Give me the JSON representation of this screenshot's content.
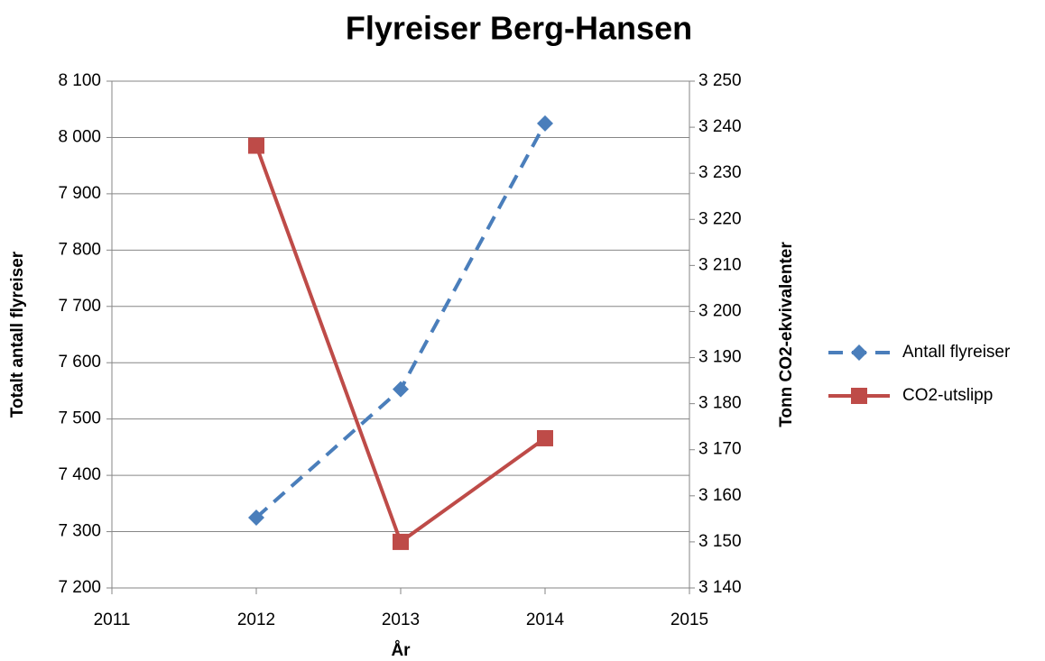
{
  "chart_data": {
    "type": "line",
    "title": "Flyreiser Berg-Hansen",
    "x_label": "År",
    "y_label": "Totalt antall flyreiser",
    "y2_label": "Tonn CO2-ekvivalenter",
    "x": [
      2012,
      2013,
      2014
    ],
    "xlim": [
      2011,
      2015
    ],
    "xticks": [
      2011,
      2012,
      2013,
      2014,
      2015
    ],
    "ylim": [
      7200,
      8100
    ],
    "yticks": [
      {
        "value": 7200,
        "label": "7 200"
      },
      {
        "value": 7300,
        "label": "7 300"
      },
      {
        "value": 7400,
        "label": "7 400"
      },
      {
        "value": 7500,
        "label": "7 500"
      },
      {
        "value": 7600,
        "label": "7 600"
      },
      {
        "value": 7700,
        "label": "7 700"
      },
      {
        "value": 7800,
        "label": "7 800"
      },
      {
        "value": 7900,
        "label": "7 900"
      },
      {
        "value": 8000,
        "label": "8 000"
      },
      {
        "value": 8100,
        "label": "8 100"
      }
    ],
    "y2lim": [
      3140,
      3250
    ],
    "y2ticks": [
      {
        "value": 3140,
        "label": "3 140"
      },
      {
        "value": 3150,
        "label": "3 150"
      },
      {
        "value": 3160,
        "label": "3 160"
      },
      {
        "value": 3170,
        "label": "3 170"
      },
      {
        "value": 3180,
        "label": "3 180"
      },
      {
        "value": 3190,
        "label": "3 190"
      },
      {
        "value": 3200,
        "label": "3 200"
      },
      {
        "value": 3210,
        "label": "3 210"
      },
      {
        "value": 3220,
        "label": "3 220"
      },
      {
        "value": 3230,
        "label": "3 230"
      },
      {
        "value": 3240,
        "label": "3 240"
      },
      {
        "value": 3250,
        "label": "3 250"
      }
    ],
    "grid": true,
    "legend": "right",
    "series": [
      {
        "name": "Antall flyreiser",
        "color": "#4a7ebb",
        "values": [
          7325,
          7553,
          8025
        ],
        "axis": "y",
        "dashed": true,
        "marker": "diamond"
      },
      {
        "name": "CO2-utslipp",
        "color": "#be4b48",
        "values": [
          3236,
          3150,
          3172.5
        ],
        "axis": "y2",
        "dashed": false,
        "marker": "square"
      }
    ]
  }
}
